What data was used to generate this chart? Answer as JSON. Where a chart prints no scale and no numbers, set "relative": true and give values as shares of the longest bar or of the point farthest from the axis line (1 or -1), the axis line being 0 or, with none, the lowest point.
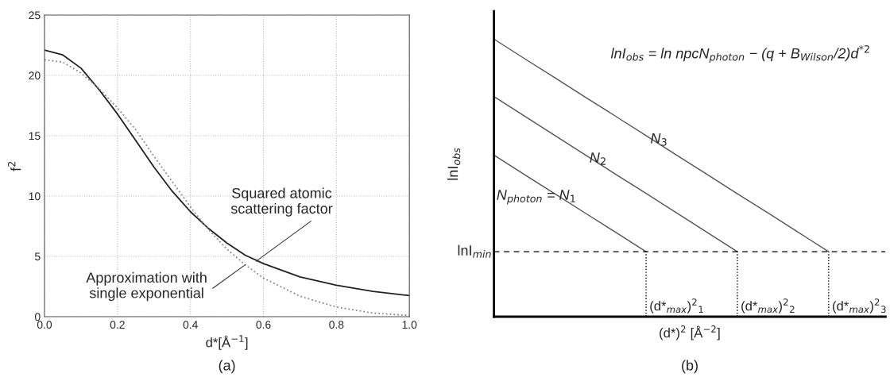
{
  "chart_data": [
    {
      "type": "line",
      "xlabel": "d*[Å$^{−1}$]",
      "ylabel": "f$^{2}$",
      "xlim": [
        0.0,
        1.0
      ],
      "ylim": [
        0,
        25
      ],
      "xticks": [
        {
          "value": 0.0,
          "label": "0.0"
        },
        {
          "value": 0.2,
          "label": "0.2"
        },
        {
          "value": 0.4,
          "label": "0.4"
        },
        {
          "value": 0.6,
          "label": "0.6"
        },
        {
          "value": 0.8,
          "label": "0.8"
        },
        {
          "value": 1.0,
          "label": "1.0"
        }
      ],
      "yticks": [
        0,
        5,
        10,
        15,
        20,
        25
      ],
      "grid": true,
      "x": [
        0,
        0.05,
        0.1,
        0.15,
        0.2,
        0.25,
        0.3,
        0.35,
        0.4,
        0.45,
        0.5,
        0.55,
        0.6,
        0.7,
        0.8,
        0.9,
        1.0
      ],
      "series": [
        {
          "color": "#222222",
          "line_style": "solid",
          "values": [
            22.1,
            21.7,
            20.6,
            18.8,
            16.8,
            14.6,
            12.4,
            10.4,
            8.7,
            7.3,
            6.1,
            5.1,
            4.4,
            3.3,
            2.6,
            2.1,
            1.75
          ]
        },
        {
          "color": "#888888",
          "line_style": "dotted",
          "values": [
            21.3,
            21.1,
            20.2,
            18.9,
            17.3,
            15.5,
            13.3,
            11.2,
            9.1,
            7.2,
            5.6,
            4.3,
            3.2,
            1.7,
            0.8,
            0.3,
            0.1
          ]
        }
      ],
      "annotations": [
        {
          "text": "Squared atomic\nscattering factor",
          "x": 0.58,
          "y": 4.6
        },
        {
          "text": "Approximation with\nsingle exponential",
          "x": 0.55,
          "y": 4.3
        },
        "(a)"
      ]
    },
    {
      "type": "line",
      "relative": true,
      "xlabel": "(d*)$^{2}$ [Å$^{−2}$]",
      "ylabel": "lnI$_{obs}$",
      "categories": [
        null,
        null,
        null,
        null,
        null,
        null,
        null,
        null,
        null,
        null,
        null,
        null
      ],
      "series": [
        {
          "name": "N$_{photon}$ = N$_{1}$",
          "color": "#555555",
          "values": [
            0.582,
            0.512,
            0.443,
            0.373,
            0.304,
            0.234,
            null,
            null,
            null,
            null,
            null,
            null
          ]
        },
        {
          "name": "N$_{2}$",
          "color": "#555555",
          "values": [
            0.793,
            0.723,
            0.653,
            0.583,
            0.513,
            0.444,
            0.374,
            0.304,
            0.234,
            null,
            null,
            null
          ]
        },
        {
          "name": "N$_{3}$",
          "color": "#555555",
          "values": [
            1.0,
            0.93,
            0.861,
            0.791,
            0.722,
            0.652,
            0.582,
            0.513,
            0.443,
            0.374,
            0.304,
            0.234
          ]
        }
      ],
      "ref_lines": [
        {
          "axis": "y",
          "value": 0.234,
          "label": "lnI$_{min}$",
          "line_style": "dashed",
          "color": "#000000"
        }
      ],
      "annotations": [
        "lnI$_{obs}$ = ln npcN$_{photon}$ − (q + B$_{Wilson}$/2)d$^{*2}$",
        "(d*$_{max}$)$^{2}$$_{1}$",
        "(d*$_{max}$)$^{2}$$_{2}$",
        "(d*$_{max}$)$^{2}$$_{3}$",
        "(b)"
      ]
    }
  ]
}
